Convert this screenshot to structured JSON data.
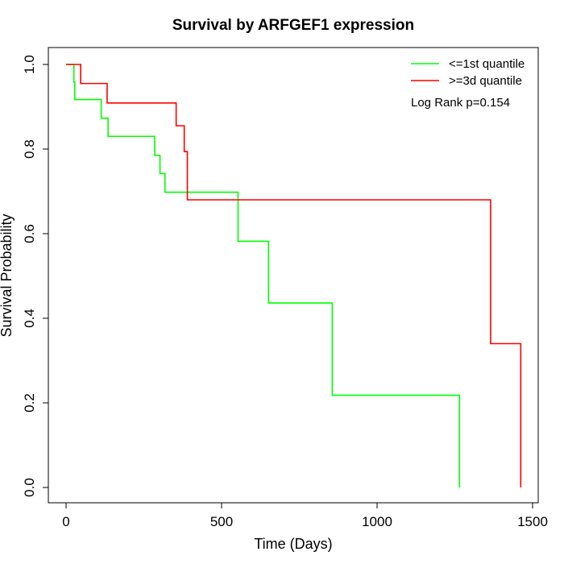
{
  "chart_data": {
    "type": "line",
    "subtype": "kaplan-meier-step",
    "title": "Survival by ARFGEF1 expression",
    "xlabel": "Time (Days)",
    "ylabel": "Survival Probability",
    "xlim": [
      0,
      1500
    ],
    "ylim": [
      0,
      1
    ],
    "xticks": [
      0,
      500,
      1000,
      1500
    ],
    "xtick_labels": [
      "0",
      "500",
      "1000",
      "1500"
    ],
    "yticks": [
      0,
      0.2,
      0.4,
      0.6,
      0.8,
      1.0
    ],
    "ytick_labels": [
      "0.0",
      "0.2",
      "0.4",
      "0.6",
      "0.8",
      "1.0"
    ],
    "grid": false,
    "legend_position": "top-right",
    "annotation": "Log Rank p=0.154",
    "series": [
      {
        "name": "<=1st quantile",
        "color": "#00ff00",
        "steps": [
          [
            0,
            1.0
          ],
          [
            25,
            0.958
          ],
          [
            28,
            0.917
          ],
          [
            113,
            0.873
          ],
          [
            135,
            0.83
          ],
          [
            285,
            0.785
          ],
          [
            302,
            0.742
          ],
          [
            318,
            0.698
          ],
          [
            553,
            0.582
          ],
          [
            651,
            0.436
          ],
          [
            856,
            0.218
          ],
          [
            1265,
            0.0
          ]
        ],
        "end_x": 1265
      },
      {
        "name": ">=3d quantile",
        "color": "#ff0000",
        "steps": [
          [
            0,
            1.0
          ],
          [
            47,
            0.955
          ],
          [
            132,
            0.909
          ],
          [
            354,
            0.855
          ],
          [
            380,
            0.794
          ],
          [
            390,
            0.68
          ],
          [
            1365,
            0.34
          ],
          [
            1462,
            0.0
          ]
        ],
        "end_x": 1462
      }
    ]
  }
}
